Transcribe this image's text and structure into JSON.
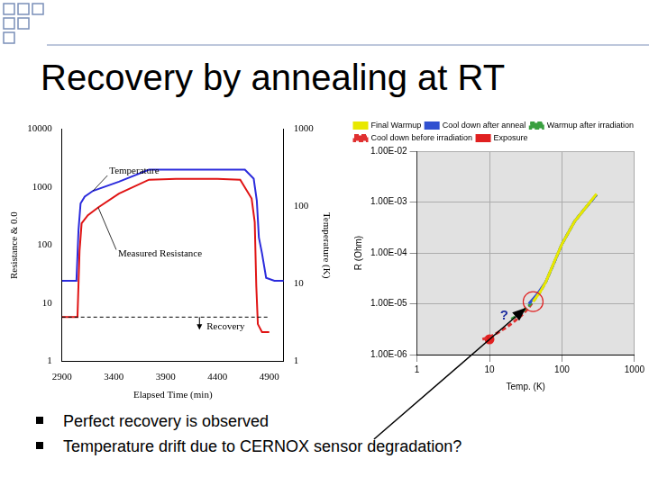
{
  "title": "Recovery by annealing at RT",
  "bullets": [
    "Perfect recovery is observed",
    "Temperature drift due to CERNOX sensor degradation?"
  ],
  "chart_data": [
    {
      "type": "line",
      "xlabel": "Elapsed Time (min)",
      "ylabel": "Resistance & 0.0",
      "y2label": "Temperature (K)",
      "log": "y",
      "grid": false,
      "xlim": [
        2900,
        5040
      ],
      "xticks": [
        2900,
        3400,
        3900,
        4400,
        4900
      ],
      "ylim": [
        1,
        10000
      ],
      "yticks": [
        1,
        10,
        100,
        1000,
        10000
      ],
      "y2lim": [
        1,
        1000
      ],
      "y2ticks": [
        1,
        10,
        100,
        1000
      ],
      "annotations": [
        "Recovery"
      ],
      "series": [
        {
          "name": "Temperature",
          "color": "#2b2bdc",
          "axis": "y2",
          "x": [
            2900,
            3040,
            3060,
            3080,
            3120,
            3200,
            3450,
            3740,
            4000,
            4400,
            4665,
            4750,
            4780,
            4800,
            4830,
            4870,
            4950,
            5040
          ],
          "values": [
            11,
            11,
            50,
            110,
            135,
            160,
            210,
            300,
            300,
            300,
            300,
            230,
            120,
            40,
            25,
            12,
            11,
            11
          ]
        },
        {
          "name": "Measured Resistance",
          "color": "#e01414",
          "x": [
            2900,
            3050,
            3070,
            3090,
            3150,
            3250,
            3450,
            3740,
            4000,
            4400,
            4620,
            4730,
            4760,
            4775,
            4790,
            4830,
            4900
          ],
          "values": [
            5.8,
            5.8,
            80,
            240,
            330,
            450,
            780,
            1350,
            1400,
            1400,
            1350,
            640,
            250,
            20,
            4.4,
            3.2,
            3.2
          ]
        }
      ]
    },
    {
      "type": "line",
      "xlabel": "Temp. (K)",
      "ylabel": "R (Ohm)",
      "log": true,
      "grid": true,
      "legend": "top",
      "xlim": [
        1,
        1000
      ],
      "xticks": [
        1,
        10,
        100,
        1000
      ],
      "ylim": [
        1e-06,
        0.01
      ],
      "yticks": [
        {
          "value": 1e-06,
          "label": "1.00E-06"
        },
        {
          "value": 1e-05,
          "label": "1.00E-05"
        },
        {
          "value": 0.0001,
          "label": "1.00E-04"
        },
        {
          "value": 0.001,
          "label": "1.00E-03"
        },
        {
          "value": 0.01,
          "label": "1.00E-02"
        }
      ],
      "annotations": [
        "?"
      ],
      "series": [
        {
          "name": "Exposure",
          "color": "#e02020",
          "type": "scatter",
          "marker": "circle",
          "x": [
            10
          ],
          "values": [
            2e-06
          ]
        },
        {
          "name": "Cool down before irradiation",
          "color": "#e03030",
          "line_style": "dashed",
          "x": [
            8,
            10,
            13,
            17,
            22,
            28,
            34,
            40
          ],
          "values": [
            2e-06,
            2.2e-06,
            2.7e-06,
            3.4e-06,
            4.5e-06,
            6e-06,
            8e-06,
            1.1e-05
          ]
        },
        {
          "name": "Warmup after irradiation",
          "color": "#3aa040",
          "line_style": "dashed",
          "x": [
            20,
            25,
            30,
            40,
            50,
            60,
            80,
            100,
            150,
            200,
            300
          ],
          "values": [
            5e-06,
            6e-06,
            7.5e-06,
            1.1e-05,
            1.7e-05,
            2.7e-05,
            7e-05,
            0.00015,
            0.00042,
            0.0007,
            0.0014
          ]
        },
        {
          "name": "Cool down after anneal",
          "color": "#3050d0",
          "x": [
            35,
            45,
            60,
            80,
            100,
            150,
            200,
            300
          ],
          "values": [
            1e-05,
            1.5e-05,
            2.7e-05,
            7e-05,
            0.00015,
            0.00042,
            0.0007,
            0.0014
          ]
        },
        {
          "name": "Final Warmup",
          "color": "#e8e800",
          "x": [
            40,
            50,
            60,
            80,
            100,
            150,
            200,
            300
          ],
          "values": [
            1.1e-05,
            1.7e-05,
            2.7e-05,
            7.2e-05,
            0.00015,
            0.00042,
            0.0007,
            0.00145
          ]
        }
      ]
    }
  ]
}
